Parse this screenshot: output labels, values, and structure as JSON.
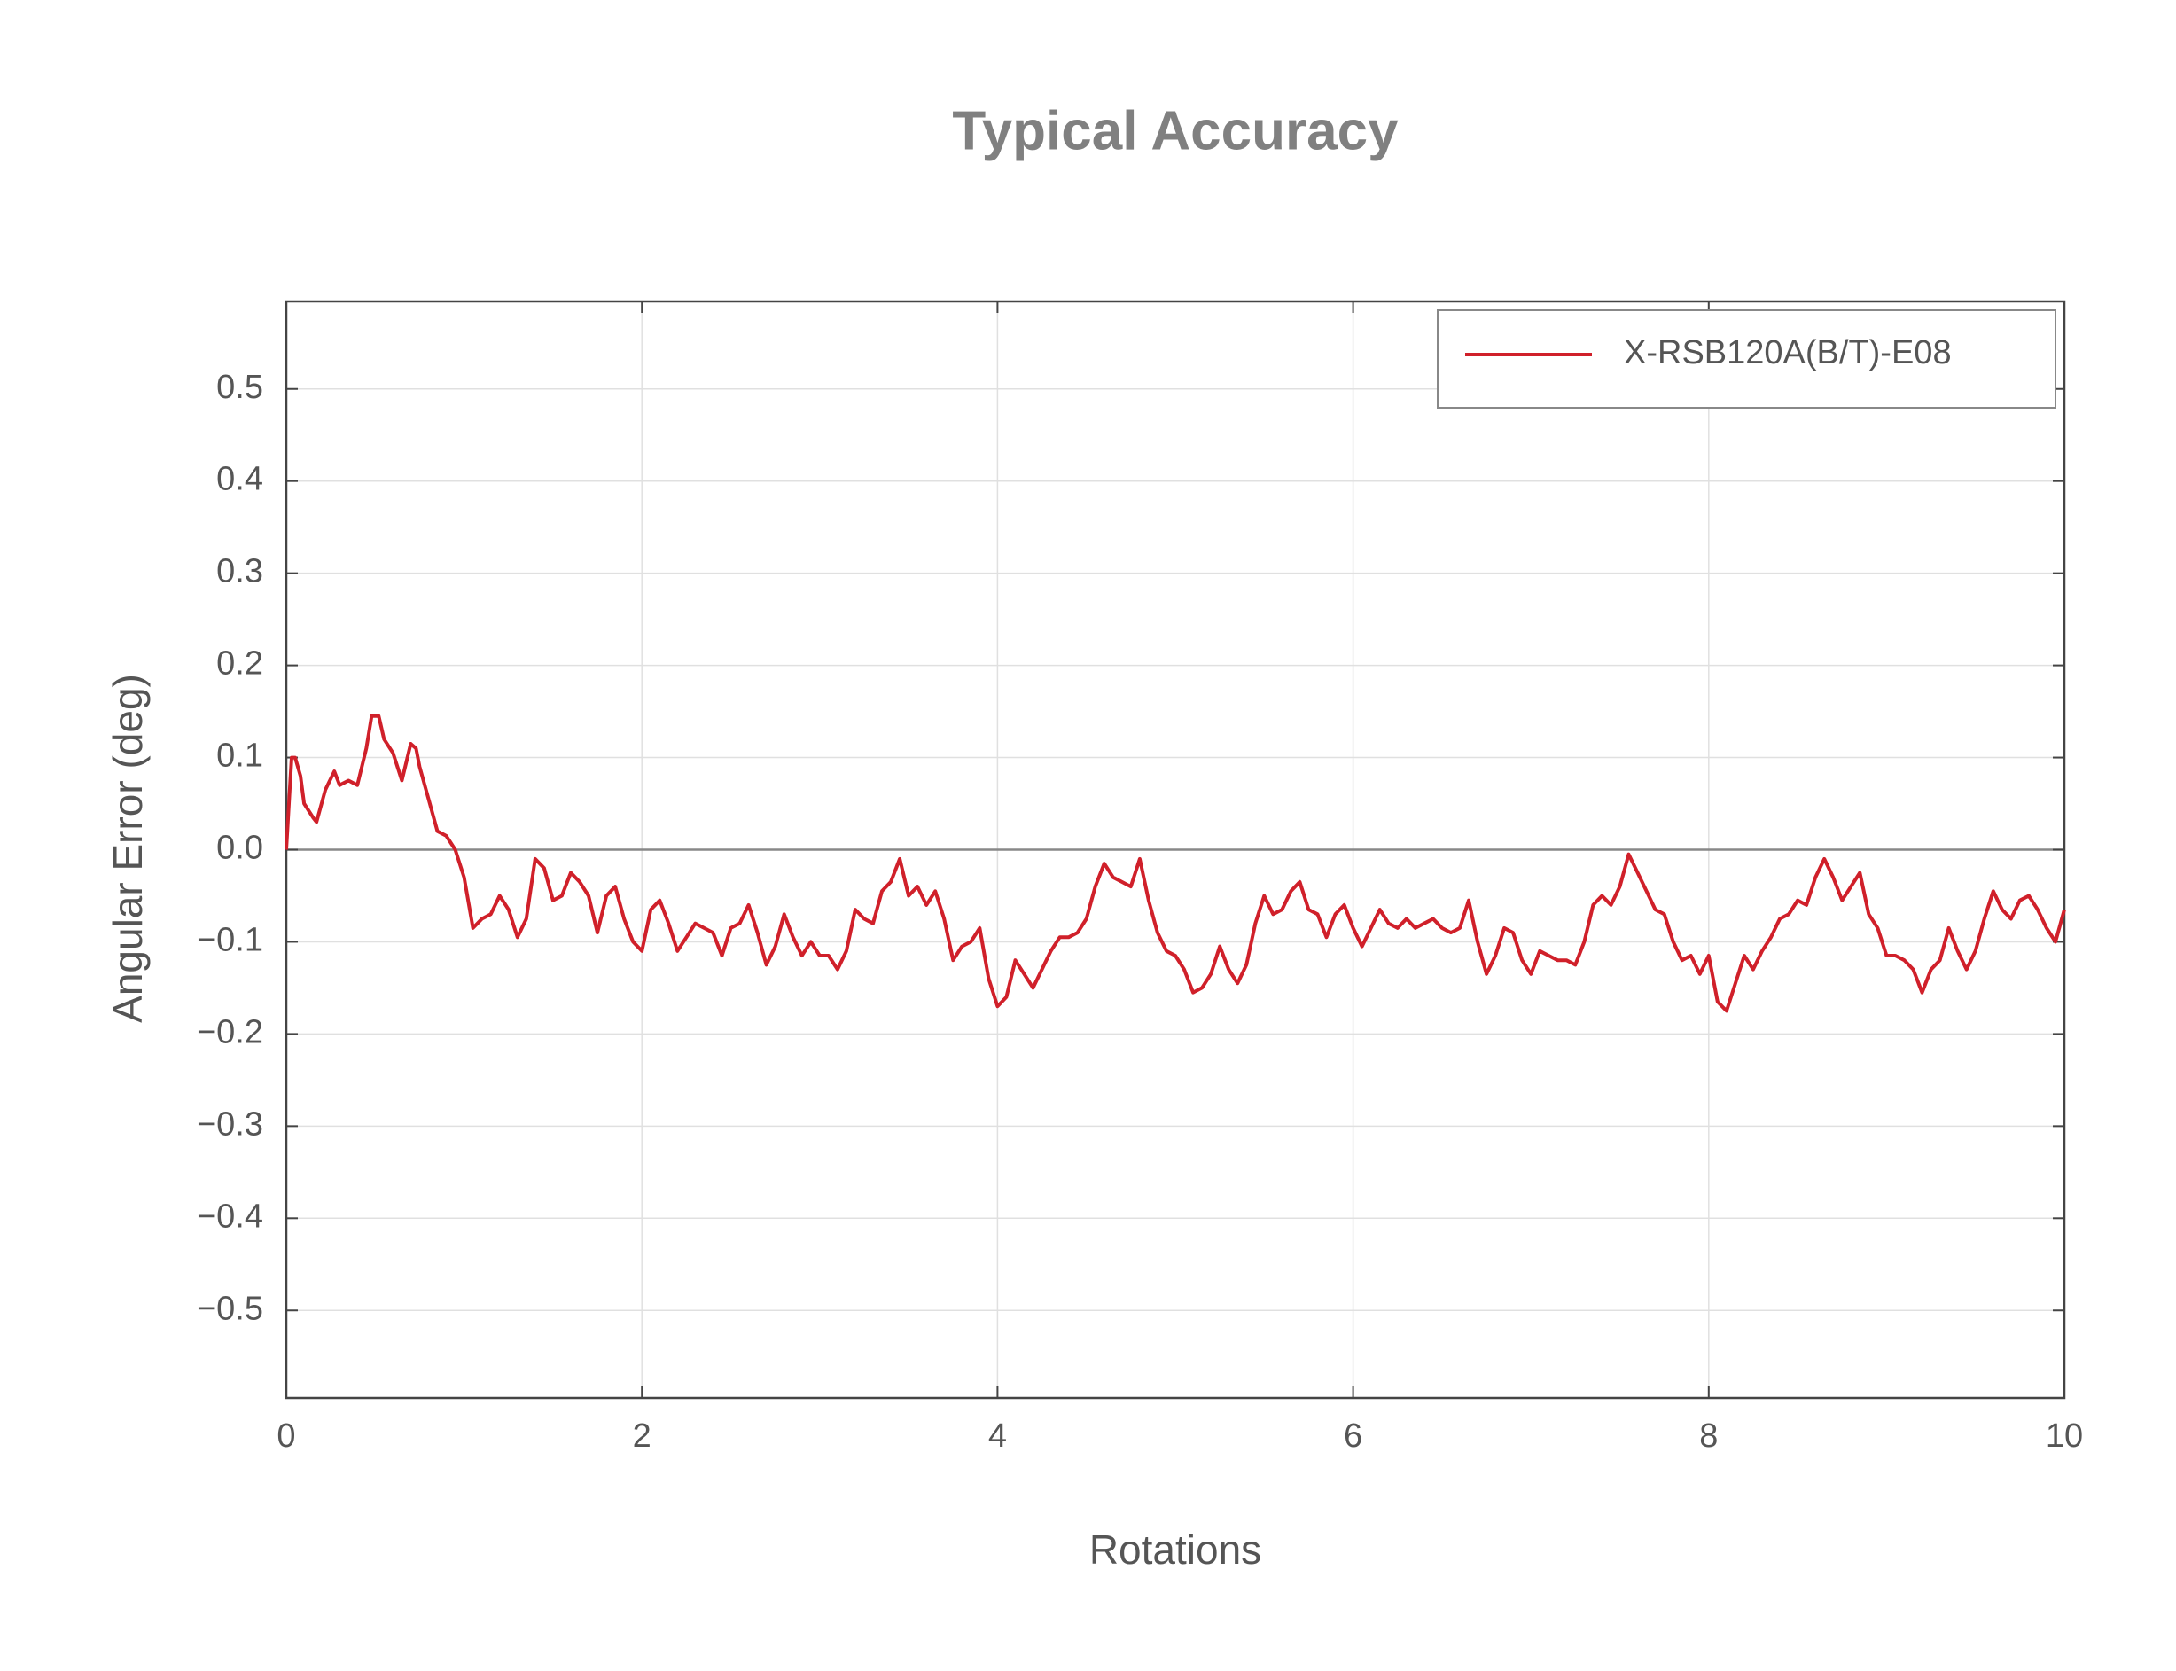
{
  "chart_data": {
    "type": "line",
    "title": "Typical Accuracy",
    "xlabel": "Rotations",
    "ylabel": "Angular Error (deg)",
    "xlim": [
      0,
      10
    ],
    "xticks": [
      0,
      2,
      4,
      6,
      8,
      10
    ],
    "ylim": [
      -0.595,
      0.595
    ],
    "yticks": [
      {
        "value": -0.5,
        "label": "−0.5"
      },
      {
        "value": -0.4,
        "label": "−0.4"
      },
      {
        "value": -0.3,
        "label": "−0.3"
      },
      {
        "value": -0.2,
        "label": "−0.2"
      },
      {
        "value": -0.1,
        "label": "−0.1"
      },
      {
        "value": 0,
        "label": "0.0"
      },
      0.1,
      0.2,
      0.3,
      0.4,
      0.5
    ],
    "grid": true,
    "legend": "upper right",
    "x": [
      0,
      0.03,
      0.05,
      0.08,
      0.1,
      0.15,
      0.17,
      0.22,
      0.27,
      0.3,
      0.35,
      0.4,
      0.45,
      0.48,
      0.52,
      0.55,
      0.6,
      0.65,
      0.7,
      0.73,
      0.75,
      0.8,
      0.85,
      0.9,
      0.95,
      1.0,
      1.05,
      1.1,
      1.15,
      1.2,
      1.25,
      1.3,
      1.35,
      1.4,
      1.45,
      1.5,
      1.55,
      1.6,
      1.65,
      1.7,
      1.75,
      1.8,
      1.85,
      1.9,
      1.95,
      2.0,
      2.05,
      2.1,
      2.15,
      2.2,
      2.25,
      2.3,
      2.35,
      2.4,
      2.45,
      2.5,
      2.55,
      2.6,
      2.65,
      2.7,
      2.75,
      2.8,
      2.85,
      2.9,
      2.95,
      3.0,
      3.05,
      3.1,
      3.15,
      3.2,
      3.25,
      3.3,
      3.35,
      3.4,
      3.45,
      3.5,
      3.55,
      3.6,
      3.65,
      3.7,
      3.75,
      3.8,
      3.85,
      3.9,
      3.95,
      4.0,
      4.05,
      4.1,
      4.15,
      4.2,
      4.25,
      4.3,
      4.35,
      4.4,
      4.45,
      4.5,
      4.55,
      4.6,
      4.65,
      4.7,
      4.75,
      4.8,
      4.85,
      4.9,
      4.95,
      5.0,
      5.05,
      5.1,
      5.15,
      5.2,
      5.25,
      5.3,
      5.35,
      5.4,
      5.45,
      5.5,
      5.55,
      5.6,
      5.65,
      5.7,
      5.75,
      5.8,
      5.85,
      5.9,
      5.95,
      6.0,
      6.05,
      6.1,
      6.15,
      6.2,
      6.25,
      6.3,
      6.35,
      6.4,
      6.45,
      6.5,
      6.55,
      6.6,
      6.65,
      6.7,
      6.75,
      6.8,
      6.85,
      6.9,
      6.95,
      7.0,
      7.05,
      7.1,
      7.15,
      7.2,
      7.25,
      7.3,
      7.35,
      7.4,
      7.45,
      7.5,
      7.55,
      7.6,
      7.65,
      7.7,
      7.75,
      7.8,
      7.85,
      7.9,
      7.95,
      8.0,
      8.05,
      8.1,
      8.15,
      8.2,
      8.25,
      8.3,
      8.35,
      8.4,
      8.45,
      8.5,
      8.55,
      8.6,
      8.65,
      8.7,
      8.75,
      8.8,
      8.85,
      8.9,
      8.95,
      9.0,
      9.05,
      9.1,
      9.15,
      9.2,
      9.25,
      9.3,
      9.35,
      9.4,
      9.45,
      9.5,
      9.55,
      9.6,
      9.65,
      9.7,
      9.75,
      9.8,
      9.85,
      9.9,
      9.95,
      10.0
    ],
    "series": [
      {
        "name": "X-RSB120A(B/T)-E08",
        "color": "#d0202a",
        "values": [
          0,
          0.1,
          0.1,
          0.08,
          0.05,
          0.035,
          0.03,
          0.065,
          0.085,
          0.07,
          0.075,
          0.07,
          0.11,
          0.145,
          0.145,
          0.12,
          0.105,
          0.075,
          0.115,
          0.11,
          0.09,
          0.055,
          0.02,
          0.015,
          0.0,
          -0.03,
          -0.085,
          -0.075,
          -0.07,
          -0.05,
          -0.065,
          -0.095,
          -0.075,
          -0.01,
          -0.02,
          -0.055,
          -0.05,
          -0.025,
          -0.035,
          -0.05,
          -0.09,
          -0.05,
          -0.04,
          -0.075,
          -0.1,
          -0.11,
          -0.065,
          -0.055,
          -0.08,
          -0.11,
          -0.095,
          -0.08,
          -0.085,
          -0.09,
          -0.115,
          -0.085,
          -0.08,
          -0.06,
          -0.09,
          -0.125,
          -0.105,
          -0.07,
          -0.095,
          -0.115,
          -0.1,
          -0.115,
          -0.115,
          -0.13,
          -0.11,
          -0.065,
          -0.075,
          -0.08,
          -0.045,
          -0.035,
          -0.01,
          -0.05,
          -0.04,
          -0.06,
          -0.045,
          -0.075,
          -0.12,
          -0.105,
          -0.1,
          -0.085,
          -0.14,
          -0.17,
          -0.16,
          -0.12,
          -0.135,
          -0.15,
          -0.13,
          -0.11,
          -0.095,
          -0.095,
          -0.09,
          -0.075,
          -0.04,
          -0.015,
          -0.03,
          -0.035,
          -0.04,
          -0.01,
          -0.055,
          -0.09,
          -0.11,
          -0.115,
          -0.13,
          -0.155,
          -0.15,
          -0.135,
          -0.105,
          -0.13,
          -0.145,
          -0.125,
          -0.08,
          -0.05,
          -0.07,
          -0.065,
          -0.045,
          -0.035,
          -0.065,
          -0.07,
          -0.095,
          -0.07,
          -0.06,
          -0.085,
          -0.105,
          -0.085,
          -0.065,
          -0.08,
          -0.085,
          -0.075,
          -0.085,
          -0.08,
          -0.075,
          -0.085,
          -0.09,
          -0.085,
          -0.055,
          -0.1,
          -0.135,
          -0.115,
          -0.085,
          -0.09,
          -0.12,
          -0.135,
          -0.11,
          -0.115,
          -0.12,
          -0.12,
          -0.125,
          -0.1,
          -0.06,
          -0.05,
          -0.06,
          -0.04,
          -0.005,
          -0.025,
          -0.045,
          -0.065,
          -0.07,
          -0.1,
          -0.12,
          -0.115,
          -0.135,
          -0.115,
          -0.165,
          -0.175,
          -0.145,
          -0.115,
          -0.13,
          -0.11,
          -0.095,
          -0.075,
          -0.07,
          -0.055,
          -0.06,
          -0.03,
          -0.01,
          -0.03,
          -0.055,
          -0.04,
          -0.025,
          -0.07,
          -0.085,
          -0.115,
          -0.115,
          -0.12,
          -0.13,
          -0.155,
          -0.13,
          -0.12,
          -0.085,
          -0.11,
          -0.13,
          -0.11,
          -0.075,
          -0.045,
          -0.065,
          -0.075,
          -0.055,
          -0.05,
          -0.065,
          -0.085,
          -0.1,
          -0.065
        ]
      }
    ]
  }
}
